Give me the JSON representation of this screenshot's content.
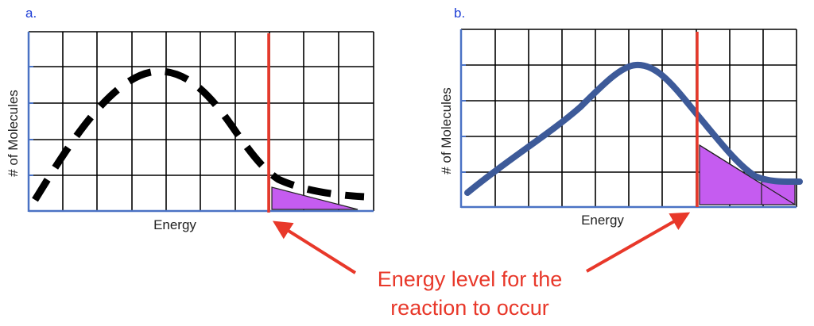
{
  "panels": [
    {
      "label": "a.",
      "xlabel": "Energy",
      "ylabel": "# of Molecules",
      "curve_style": "dashed",
      "curve_color": "#000000"
    },
    {
      "label": "b.",
      "xlabel": "Energy",
      "ylabel": "# of Molecules",
      "curve_style": "solid",
      "curve_color": "#3d5a99"
    }
  ],
  "annotation": {
    "line1": "Energy level for the",
    "line2": "reaction to occur",
    "color": "#e8382a"
  },
  "colors": {
    "threshold": "#e8382a",
    "shaded_area": "#c55cf0",
    "axis": "#4a72c4",
    "grid": "#000000",
    "panel_label": "#1f3fd6"
  }
}
